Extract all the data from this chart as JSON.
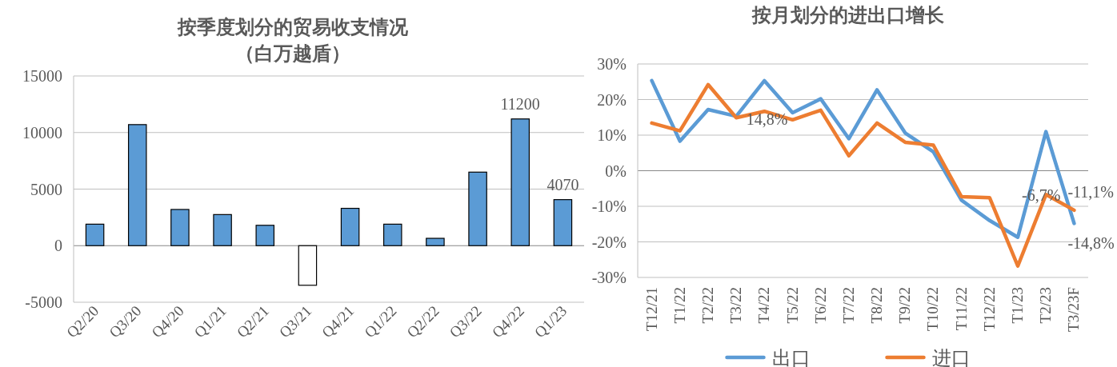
{
  "chart_data": [
    {
      "type": "bar",
      "title": "按季度划分的贸易收支情况",
      "subtitle": "（白万越盾）",
      "categories": [
        "Q2/20",
        "Q3/20",
        "Q4/20",
        "Q1/21",
        "Q2/21",
        "Q3/21",
        "Q4/21",
        "Q1/22",
        "Q2/22",
        "Q3/22",
        "Q4/22",
        "Q1/23"
      ],
      "values": [
        1900,
        10700,
        3200,
        2750,
        1800,
        -3500,
        3300,
        1900,
        650,
        6500,
        11200,
        4070
      ],
      "colors": [
        "#5b9bd5",
        "#5b9bd5",
        "#5b9bd5",
        "#5b9bd5",
        "#5b9bd5",
        "#ffffff",
        "#5b9bd5",
        "#5b9bd5",
        "#5b9bd5",
        "#5b9bd5",
        "#5b9bd5",
        "#5b9bd5"
      ],
      "value_labels": [
        null,
        null,
        null,
        null,
        null,
        null,
        null,
        null,
        null,
        null,
        "11200",
        "4070"
      ],
      "ylim": [
        -5000,
        15000
      ],
      "yticks": [
        -5000,
        0,
        5000,
        10000,
        15000
      ],
      "grid": "y"
    },
    {
      "type": "line",
      "title": "按月划分的进出口增长",
      "categories": [
        "T12/21",
        "T1/22",
        "T2/22",
        "T3/22",
        "T4/22",
        "T5/22",
        "T6/22",
        "T7/22",
        "T8/22",
        "T9/22",
        "T10/22",
        "T11/22",
        "T12/22",
        "T1/23",
        "T2/23",
        "T3/23F"
      ],
      "series": [
        {
          "name": "出口",
          "color": "#5b9bd5",
          "values": [
            25.3,
            8.3,
            17.2,
            15.3,
            25.3,
            16.3,
            20.2,
            9,
            22.7,
            10.6,
            5.3,
            -8.3,
            -14,
            -18.7,
            11,
            -14.8
          ]
        },
        {
          "name": "进口",
          "color": "#ed7d31",
          "values": [
            13.4,
            11.2,
            24.2,
            14.9,
            16.7,
            14.3,
            17,
            4.2,
            13.4,
            8,
            7.2,
            -7.3,
            -7.6,
            -26.8,
            -6.7,
            -11.1
          ]
        }
      ],
      "annotations": [
        {
          "text": "14,8%",
          "x": "T5/22",
          "y": 14.8
        },
        {
          "text": "-6,7%",
          "x": "T2/23",
          "y": -6.7
        },
        {
          "text": "-14,8%",
          "x": "T3/23F",
          "y": -14.8
        },
        {
          "text": "-11,1%",
          "x": "T3/23F",
          "y": -11.1
        }
      ],
      "ylim": [
        -30,
        30
      ],
      "yticks": [
        {
          "value": -30,
          "label": "-30%"
        },
        {
          "value": -20,
          "label": "-20%"
        },
        {
          "value": -10,
          "label": "-10%"
        },
        {
          "value": 0,
          "label": "0%"
        },
        {
          "value": 10,
          "label": "10%"
        },
        {
          "value": 20,
          "label": "20%"
        },
        {
          "value": 30,
          "label": "30%"
        }
      ],
      "grid": "y",
      "legend": "bottom"
    }
  ]
}
